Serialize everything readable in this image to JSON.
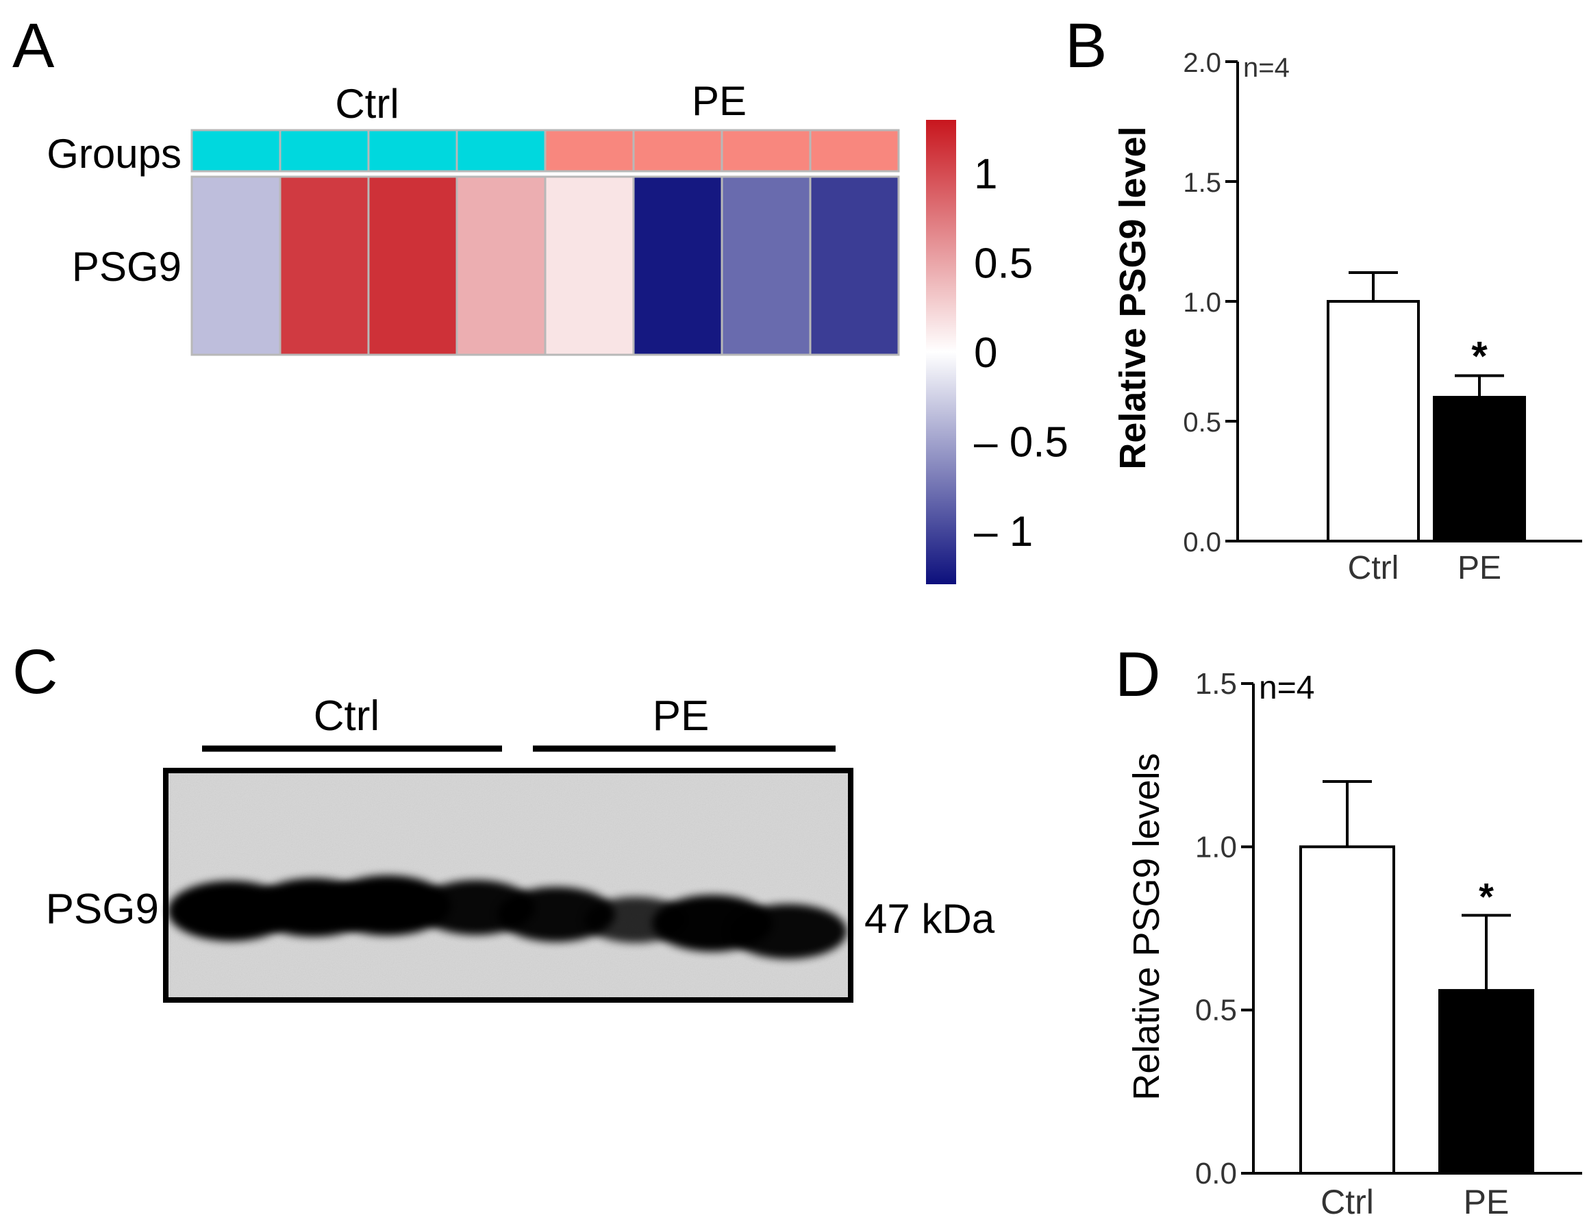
{
  "panel_a": {
    "letter": "A",
    "row_labels": [
      "Groups",
      "PSG9"
    ],
    "group_labels": [
      "Ctrl",
      "PE"
    ],
    "colorbar_ticks": [
      "1",
      "0.5",
      "0",
      "– 0.5",
      "– 1"
    ],
    "colorbar_tick_values": [
      1,
      0.5,
      0,
      -0.5,
      -1
    ],
    "colors": {
      "ctrl_group": "#00d8de",
      "pe_group": "#f8877e",
      "high": "#c8161e",
      "mid": "#ffffff",
      "low": "#0c0f7c"
    }
  },
  "panel_b": {
    "letter": "B",
    "ylabel": "Relative PSG9 level",
    "annotation": "n=4",
    "yticks": [
      "0.0",
      "0.5",
      "1.0",
      "1.5",
      "2.0"
    ],
    "categories": [
      "Ctrl",
      "PE"
    ],
    "significance": "*",
    "colors": {
      "Ctrl": "#ffffff",
      "PE": "#000000"
    }
  },
  "panel_c": {
    "letter": "C",
    "group_labels": [
      "Ctrl",
      "PE"
    ],
    "row_label": "PSG9",
    "size_label": "47 kDa",
    "band_intensity": [
      1.0,
      0.95,
      1.0,
      0.85,
      0.85,
      0.6,
      0.9,
      0.85
    ]
  },
  "panel_d": {
    "letter": "D",
    "ylabel": "Relative PSG9 levels",
    "annotation": "n=4",
    "yticks": [
      "0.0",
      "0.5",
      "1.0",
      "1.5"
    ],
    "categories": [
      "Ctrl",
      "PE"
    ],
    "significance": "*",
    "colors": {
      "Ctrl": "#ffffff",
      "PE": "#000000"
    }
  },
  "chart_data": [
    {
      "type": "heatmap",
      "rows": [
        "PSG9"
      ],
      "columns": [
        "Ctrl",
        "Ctrl",
        "Ctrl",
        "Ctrl",
        "PE",
        "PE",
        "PE",
        "PE"
      ],
      "values": [
        [
          -0.35,
          1.1,
          1.15,
          0.45,
          0.15,
          -1.25,
          -0.8,
          -1.05
        ]
      ],
      "colorbar_range": [
        -1.3,
        1.3
      ]
    },
    {
      "type": "bar",
      "categories": [
        "Ctrl",
        "PE"
      ],
      "values": [
        1.0,
        0.6
      ],
      "errors": [
        0.12,
        0.09
      ],
      "ylabel": "Relative PSG9 level",
      "ylim": [
        0,
        2.0
      ]
    },
    {
      "type": "bar",
      "categories": [
        "Ctrl",
        "PE"
      ],
      "values": [
        1.0,
        0.56
      ],
      "errors": [
        0.2,
        0.23
      ],
      "ylabel": "Relative PSG9 levels",
      "ylim": [
        0,
        1.5
      ]
    }
  ]
}
